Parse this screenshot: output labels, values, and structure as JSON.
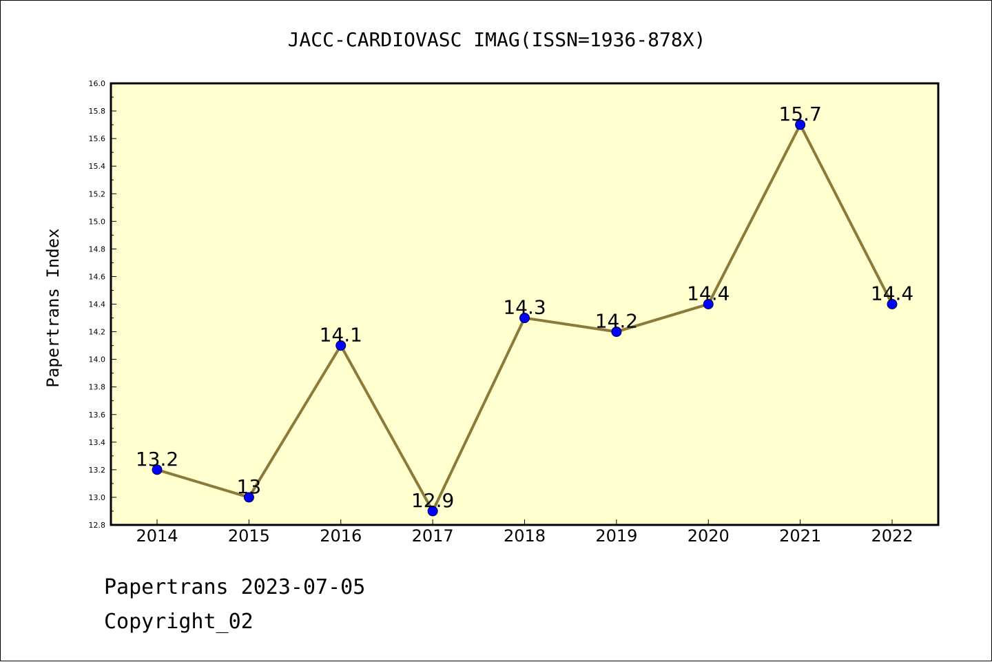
{
  "chart_data": {
    "type": "line",
    "title": "JACC-CARDIOVASC IMAG(ISSN=1936-878X)",
    "xlabel": "",
    "ylabel": "Papertrans Index",
    "categories": [
      "2014",
      "2015",
      "2016",
      "2017",
      "2018",
      "2019",
      "2020",
      "2021",
      "2022"
    ],
    "values": [
      13.2,
      13.0,
      14.1,
      12.9,
      14.3,
      14.2,
      14.4,
      15.7,
      14.4
    ],
    "data_labels": [
      "13.2",
      "13",
      "14.1",
      "12.9",
      "14.3",
      "14.2",
      "14.4",
      "15.7",
      "14.4"
    ],
    "ylim": [
      12.8,
      16.0
    ],
    "y_ticks": [
      "12.8",
      "13.0",
      "13.2",
      "13.4",
      "13.6",
      "13.8",
      "14.0",
      "14.2",
      "14.4",
      "14.6",
      "14.8",
      "15.0",
      "15.2",
      "15.4",
      "15.6",
      "15.8",
      "16.0"
    ],
    "grid": false,
    "legend": "none",
    "plot_background": "#ffffd0",
    "line_color": "#8b7a3a",
    "marker_color": "#0000ff"
  },
  "footer": {
    "date_line": "Papertrans 2023-07-05",
    "copyright_line": "Copyright_02"
  }
}
